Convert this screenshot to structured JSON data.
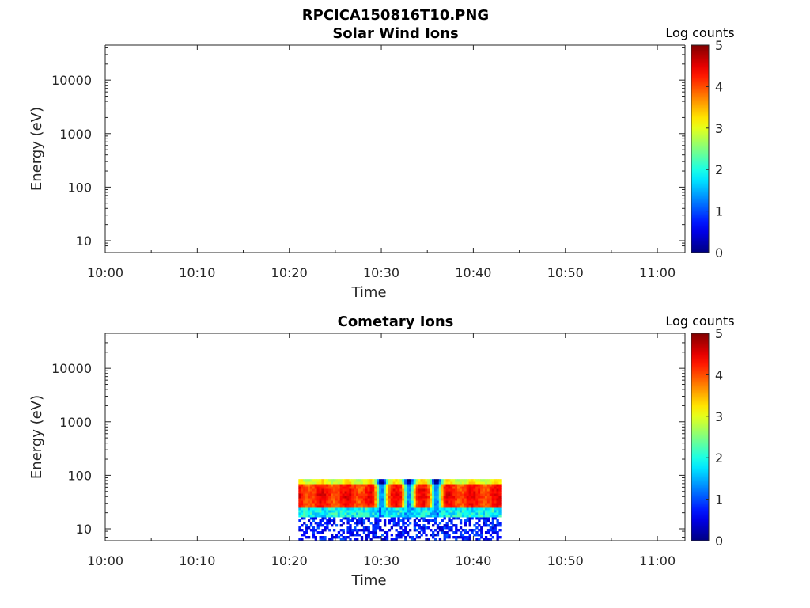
{
  "figure": {
    "title": "RPCICA150816T10.PNG"
  },
  "chart_data": [
    {
      "type": "heatmap",
      "title": "Solar Wind Ions",
      "xlabel": "Time",
      "ylabel": "Energy (eV)",
      "x_scale": "time",
      "y_scale": "log",
      "xlim": [
        "10:00",
        "11:03"
      ],
      "ylim": [
        6,
        45000
      ],
      "x_ticks": [
        "10:00",
        "10:10",
        "10:20",
        "10:30",
        "10:40",
        "10:50",
        "11:00"
      ],
      "y_ticks": [
        "10",
        "100",
        "1000",
        "10000"
      ],
      "colorbar": {
        "label": "Log counts",
        "range": [
          0,
          5
        ],
        "ticks": [
          "0",
          "1",
          "2",
          "3",
          "4",
          "5"
        ],
        "colormap": "jet"
      },
      "data_extent": null
    },
    {
      "type": "heatmap",
      "title": "Cometary Ions",
      "xlabel": "Time",
      "ylabel": "Energy (eV)",
      "x_scale": "time",
      "y_scale": "log",
      "xlim": [
        "10:00",
        "11:03"
      ],
      "ylim": [
        6,
        45000
      ],
      "x_ticks": [
        "10:00",
        "10:10",
        "10:20",
        "10:30",
        "10:40",
        "10:50",
        "11:00"
      ],
      "y_ticks": [
        "10",
        "100",
        "1000",
        "10000"
      ],
      "colorbar": {
        "label": "Log counts",
        "range": [
          0,
          5
        ],
        "ticks": [
          "0",
          "1",
          "2",
          "3",
          "4",
          "5"
        ],
        "colormap": "jet"
      },
      "data_extent": {
        "time_start": "10:21",
        "time_end": "10:43",
        "energy_min": 6,
        "energy_max": 85,
        "peak_band_energy": [
          25,
          85
        ],
        "peak_log_counts": 4.3,
        "low_count_dips": [
          "10:30",
          "10:33",
          "10:36"
        ]
      }
    }
  ]
}
